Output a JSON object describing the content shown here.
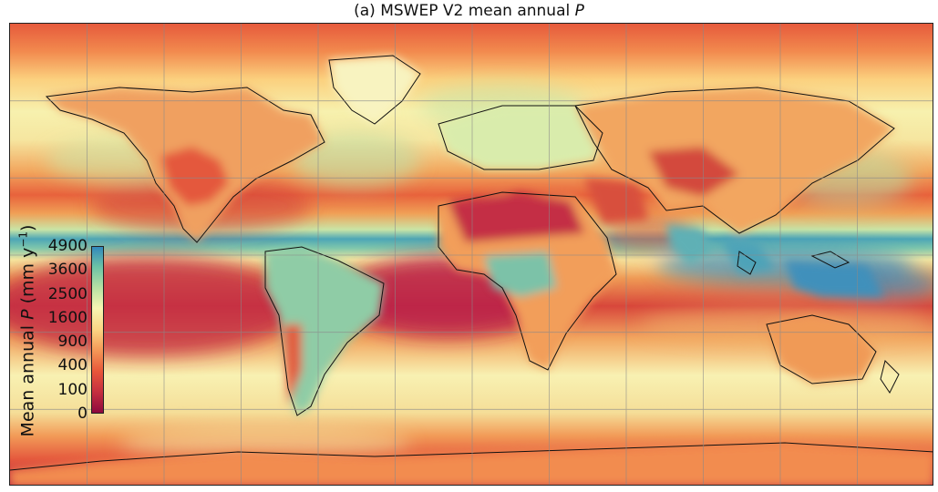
{
  "title": {
    "prefix": "(a) MSWEP V2 mean annual ",
    "variable": "P"
  },
  "colorbar": {
    "label_prefix": "Mean annual ",
    "label_variable": "P",
    "label_units": " (mm y",
    "label_exponent": "−1",
    "label_close": ")",
    "ticks": [
      "4900",
      "3600",
      "2500",
      "1600",
      "900",
      "400",
      "100",
      "0"
    ],
    "colors": [
      "#8e0a3e",
      "#c7313f",
      "#e8573a",
      "#f49a58",
      "#fbd583",
      "#f7f5b2",
      "#b9e1a4",
      "#6cc3a6",
      "#3288bd"
    ]
  },
  "map": {
    "projection": "equirectangular",
    "grid": true,
    "gridline_colour": "#8a8a8a"
  }
}
